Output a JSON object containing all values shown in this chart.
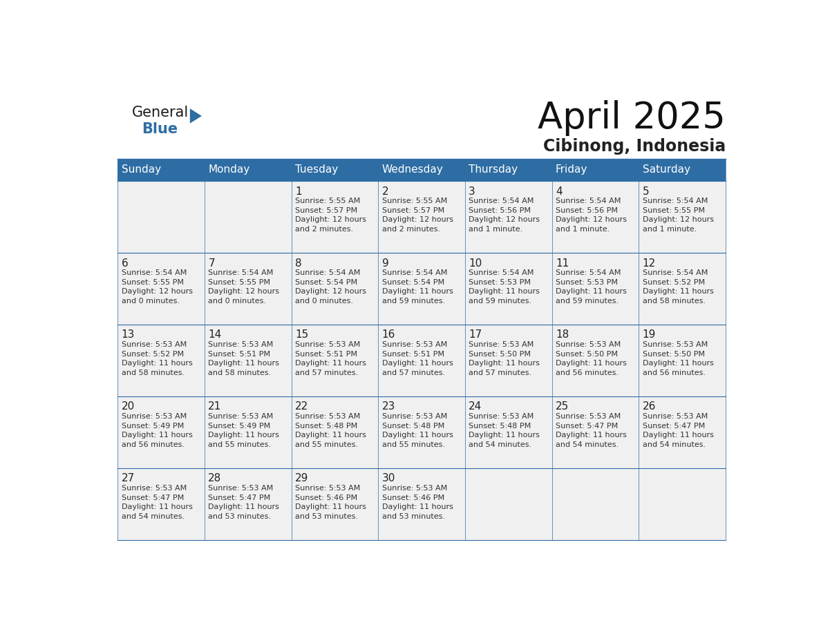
{
  "title": "April 2025",
  "subtitle": "Cibinong, Indonesia",
  "header_bg": "#2E6DA4",
  "header_text_color": "#FFFFFF",
  "cell_bg_light": "#F0F0F0",
  "cell_bg_white": "#FFFFFF",
  "day_names": [
    "Sunday",
    "Monday",
    "Tuesday",
    "Wednesday",
    "Thursday",
    "Friday",
    "Saturday"
  ],
  "text_color": "#333333",
  "line_color": "#2E6DA4",
  "logo_general_color": "#1a1a1a",
  "logo_blue_color": "#2E6DA4",
  "logo_triangle_color": "#2E6DA4",
  "title_fontsize": 38,
  "subtitle_fontsize": 17,
  "day_name_fontsize": 11,
  "day_number_fontsize": 11,
  "cell_text_fontsize": 8,
  "days": [
    {
      "day": 1,
      "col": 2,
      "row": 0,
      "sunrise": "5:55 AM",
      "sunset": "5:57 PM",
      "daylight": "12 hours and 2 minutes."
    },
    {
      "day": 2,
      "col": 3,
      "row": 0,
      "sunrise": "5:55 AM",
      "sunset": "5:57 PM",
      "daylight": "12 hours and 2 minutes."
    },
    {
      "day": 3,
      "col": 4,
      "row": 0,
      "sunrise": "5:54 AM",
      "sunset": "5:56 PM",
      "daylight": "12 hours and 1 minute."
    },
    {
      "day": 4,
      "col": 5,
      "row": 0,
      "sunrise": "5:54 AM",
      "sunset": "5:56 PM",
      "daylight": "12 hours and 1 minute."
    },
    {
      "day": 5,
      "col": 6,
      "row": 0,
      "sunrise": "5:54 AM",
      "sunset": "5:55 PM",
      "daylight": "12 hours and 1 minute."
    },
    {
      "day": 6,
      "col": 0,
      "row": 1,
      "sunrise": "5:54 AM",
      "sunset": "5:55 PM",
      "daylight": "12 hours and 0 minutes."
    },
    {
      "day": 7,
      "col": 1,
      "row": 1,
      "sunrise": "5:54 AM",
      "sunset": "5:55 PM",
      "daylight": "12 hours and 0 minutes."
    },
    {
      "day": 8,
      "col": 2,
      "row": 1,
      "sunrise": "5:54 AM",
      "sunset": "5:54 PM",
      "daylight": "12 hours and 0 minutes."
    },
    {
      "day": 9,
      "col": 3,
      "row": 1,
      "sunrise": "5:54 AM",
      "sunset": "5:54 PM",
      "daylight": "11 hours and 59 minutes."
    },
    {
      "day": 10,
      "col": 4,
      "row": 1,
      "sunrise": "5:54 AM",
      "sunset": "5:53 PM",
      "daylight": "11 hours and 59 minutes."
    },
    {
      "day": 11,
      "col": 5,
      "row": 1,
      "sunrise": "5:54 AM",
      "sunset": "5:53 PM",
      "daylight": "11 hours and 59 minutes."
    },
    {
      "day": 12,
      "col": 6,
      "row": 1,
      "sunrise": "5:54 AM",
      "sunset": "5:52 PM",
      "daylight": "11 hours and 58 minutes."
    },
    {
      "day": 13,
      "col": 0,
      "row": 2,
      "sunrise": "5:53 AM",
      "sunset": "5:52 PM",
      "daylight": "11 hours and 58 minutes."
    },
    {
      "day": 14,
      "col": 1,
      "row": 2,
      "sunrise": "5:53 AM",
      "sunset": "5:51 PM",
      "daylight": "11 hours and 58 minutes."
    },
    {
      "day": 15,
      "col": 2,
      "row": 2,
      "sunrise": "5:53 AM",
      "sunset": "5:51 PM",
      "daylight": "11 hours and 57 minutes."
    },
    {
      "day": 16,
      "col": 3,
      "row": 2,
      "sunrise": "5:53 AM",
      "sunset": "5:51 PM",
      "daylight": "11 hours and 57 minutes."
    },
    {
      "day": 17,
      "col": 4,
      "row": 2,
      "sunrise": "5:53 AM",
      "sunset": "5:50 PM",
      "daylight": "11 hours and 57 minutes."
    },
    {
      "day": 18,
      "col": 5,
      "row": 2,
      "sunrise": "5:53 AM",
      "sunset": "5:50 PM",
      "daylight": "11 hours and 56 minutes."
    },
    {
      "day": 19,
      "col": 6,
      "row": 2,
      "sunrise": "5:53 AM",
      "sunset": "5:50 PM",
      "daylight": "11 hours and 56 minutes."
    },
    {
      "day": 20,
      "col": 0,
      "row": 3,
      "sunrise": "5:53 AM",
      "sunset": "5:49 PM",
      "daylight": "11 hours and 56 minutes."
    },
    {
      "day": 21,
      "col": 1,
      "row": 3,
      "sunrise": "5:53 AM",
      "sunset": "5:49 PM",
      "daylight": "11 hours and 55 minutes."
    },
    {
      "day": 22,
      "col": 2,
      "row": 3,
      "sunrise": "5:53 AM",
      "sunset": "5:48 PM",
      "daylight": "11 hours and 55 minutes."
    },
    {
      "day": 23,
      "col": 3,
      "row": 3,
      "sunrise": "5:53 AM",
      "sunset": "5:48 PM",
      "daylight": "11 hours and 55 minutes."
    },
    {
      "day": 24,
      "col": 4,
      "row": 3,
      "sunrise": "5:53 AM",
      "sunset": "5:48 PM",
      "daylight": "11 hours and 54 minutes."
    },
    {
      "day": 25,
      "col": 5,
      "row": 3,
      "sunrise": "5:53 AM",
      "sunset": "5:47 PM",
      "daylight": "11 hours and 54 minutes."
    },
    {
      "day": 26,
      "col": 6,
      "row": 3,
      "sunrise": "5:53 AM",
      "sunset": "5:47 PM",
      "daylight": "11 hours and 54 minutes."
    },
    {
      "day": 27,
      "col": 0,
      "row": 4,
      "sunrise": "5:53 AM",
      "sunset": "5:47 PM",
      "daylight": "11 hours and 54 minutes."
    },
    {
      "day": 28,
      "col": 1,
      "row": 4,
      "sunrise": "5:53 AM",
      "sunset": "5:47 PM",
      "daylight": "11 hours and 53 minutes."
    },
    {
      "day": 29,
      "col": 2,
      "row": 4,
      "sunrise": "5:53 AM",
      "sunset": "5:46 PM",
      "daylight": "11 hours and 53 minutes."
    },
    {
      "day": 30,
      "col": 3,
      "row": 4,
      "sunrise": "5:53 AM",
      "sunset": "5:46 PM",
      "daylight": "11 hours and 53 minutes."
    }
  ]
}
